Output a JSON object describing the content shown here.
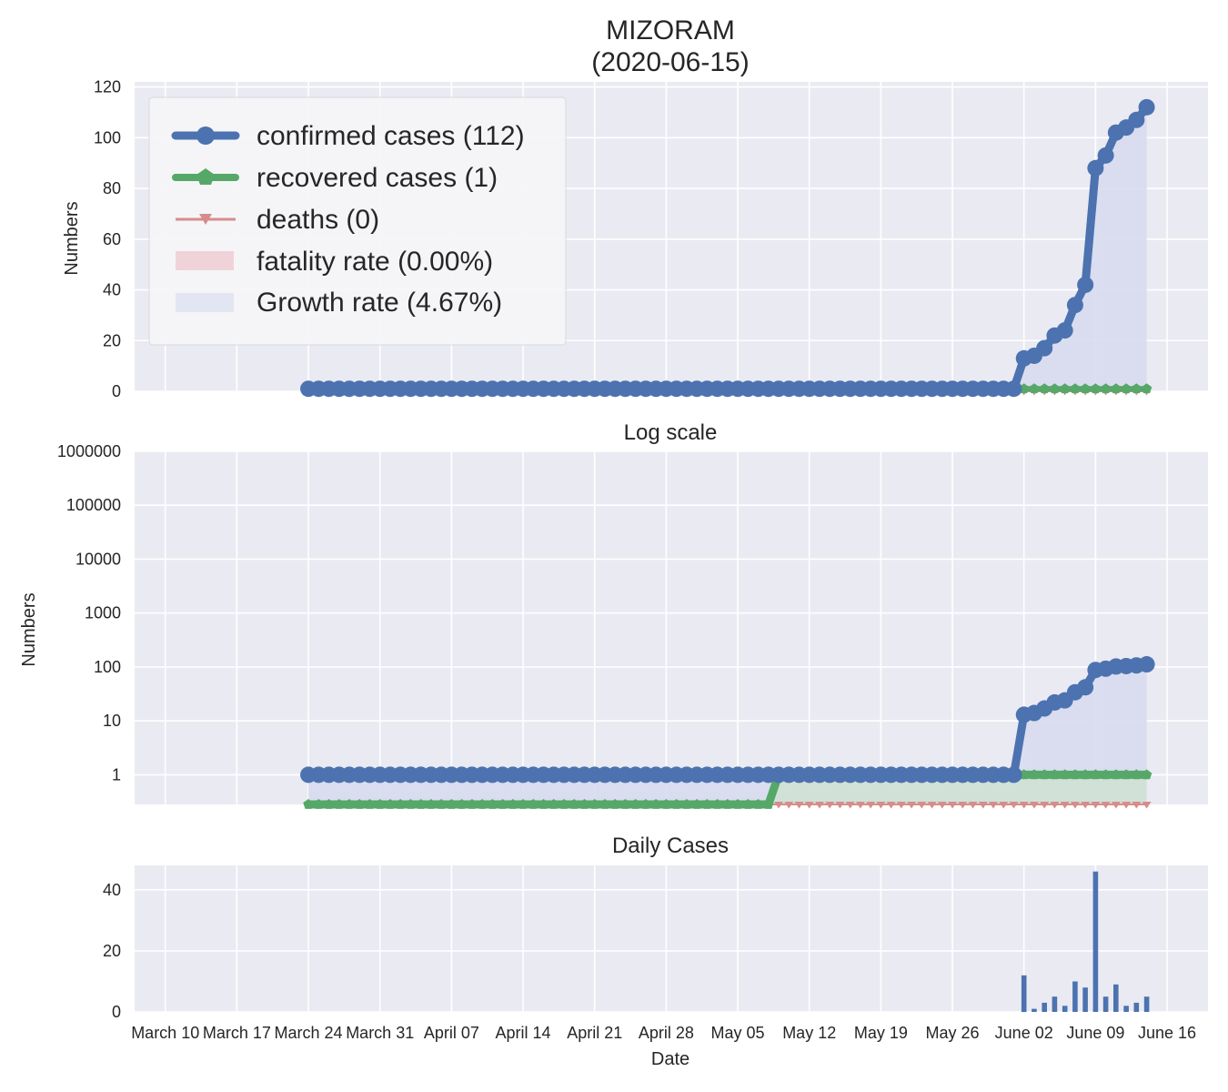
{
  "chart_data": [
    {
      "type": "line",
      "title": "MIZORAM",
      "subtitle": "(2020-06-15)",
      "ylabel": "Numbers",
      "ylim": [
        0,
        122
      ],
      "yticks": [
        0,
        20,
        40,
        60,
        80,
        100,
        120
      ],
      "grid": true,
      "legend": {
        "placement": "top-left",
        "entries": [
          {
            "label": "confirmed cases (112)",
            "color": "#4c72b0",
            "marker": "circle"
          },
          {
            "label": "recovered cases (1)",
            "color": "#55a868",
            "marker": "pentagon"
          },
          {
            "label": "deaths (0)",
            "color": "#dd8452",
            "marker": "triangle-down"
          },
          {
            "label": "fatality rate (0.00%)",
            "color": "#f0c8cc",
            "marker": "patch"
          },
          {
            "label": "Growth rate (4.67%)",
            "color": "#dde3f2",
            "marker": "patch"
          }
        ]
      }
    },
    {
      "type": "line",
      "title": "Log scale",
      "ylabel": "Numbers",
      "yscale": "log",
      "yticks": [
        1,
        10,
        100,
        1000,
        10000,
        100000,
        1000000
      ],
      "grid": true
    },
    {
      "type": "bar",
      "title": "Daily Cases",
      "xlabel": "Date",
      "ylim": [
        0,
        48
      ],
      "yticks": [
        0,
        20,
        40
      ],
      "grid": true
    }
  ],
  "x_axis": {
    "start_date": "2020-03-07",
    "end_date": "2020-06-20",
    "tick_dates": [
      "2020-03-10",
      "2020-03-17",
      "2020-03-24",
      "2020-03-31",
      "2020-04-07",
      "2020-04-14",
      "2020-04-21",
      "2020-04-28",
      "2020-05-05",
      "2020-05-12",
      "2020-05-19",
      "2020-05-26",
      "2020-06-02",
      "2020-06-09",
      "2020-06-16"
    ],
    "tick_labels": [
      "March 10",
      "March 17",
      "March 24",
      "March 31",
      "April 07",
      "April 14",
      "April 21",
      "April 28",
      "May 05",
      "May 12",
      "May 19",
      "May 26",
      "June 02",
      "June 09",
      "June 16"
    ]
  },
  "series": {
    "dates_start": "2020-03-24",
    "dates_end": "2020-06-15",
    "confirmed": [
      1,
      1,
      1,
      1,
      1,
      1,
      1,
      1,
      1,
      1,
      1,
      1,
      1,
      1,
      1,
      1,
      1,
      1,
      1,
      1,
      1,
      1,
      1,
      1,
      1,
      1,
      1,
      1,
      1,
      1,
      1,
      1,
      1,
      1,
      1,
      1,
      1,
      1,
      1,
      1,
      1,
      1,
      1,
      1,
      1,
      1,
      1,
      1,
      1,
      1,
      1,
      1,
      1,
      1,
      1,
      1,
      1,
      1,
      1,
      1,
      1,
      1,
      1,
      1,
      1,
      1,
      1,
      1,
      1,
      1,
      13,
      14,
      17,
      22,
      24,
      34,
      42,
      88,
      93,
      102,
      104,
      107,
      112
    ],
    "recovered": [
      0,
      0,
      0,
      0,
      0,
      0,
      0,
      0,
      0,
      0,
      0,
      0,
      0,
      0,
      0,
      0,
      0,
      0,
      0,
      0,
      0,
      0,
      0,
      0,
      0,
      0,
      0,
      0,
      0,
      0,
      0,
      0,
      0,
      0,
      0,
      0,
      0,
      0,
      0,
      0,
      0,
      0,
      0,
      0,
      0,
      0,
      1,
      1,
      1,
      1,
      1,
      1,
      1,
      1,
      1,
      1,
      1,
      1,
      1,
      1,
      1,
      1,
      1,
      1,
      1,
      1,
      1,
      1,
      1,
      1,
      1,
      1,
      1,
      1,
      1,
      1,
      1,
      1,
      1,
      1,
      1,
      1,
      1
    ],
    "deaths": [
      0,
      0,
      0,
      0,
      0,
      0,
      0,
      0,
      0,
      0,
      0,
      0,
      0,
      0,
      0,
      0,
      0,
      0,
      0,
      0,
      0,
      0,
      0,
      0,
      0,
      0,
      0,
      0,
      0,
      0,
      0,
      0,
      0,
      0,
      0,
      0,
      0,
      0,
      0,
      0,
      0,
      0,
      0,
      0,
      0,
      0,
      0,
      0,
      0,
      0,
      0,
      0,
      0,
      0,
      0,
      0,
      0,
      0,
      0,
      0,
      0,
      0,
      0,
      0,
      0,
      0,
      0,
      0,
      0,
      0,
      0,
      0,
      0,
      0,
      0,
      0,
      0,
      0,
      0,
      0,
      0,
      0,
      0
    ]
  },
  "colors": {
    "background": "#eaeaf2",
    "grid": "#ffffff",
    "confirmed": "#4c72b0",
    "recovered": "#55a868",
    "deaths": "#dd8452",
    "death_line": "#d68c8c",
    "growth_fill": "#d7dbee",
    "recovered_fill": "#cfe1d4"
  }
}
